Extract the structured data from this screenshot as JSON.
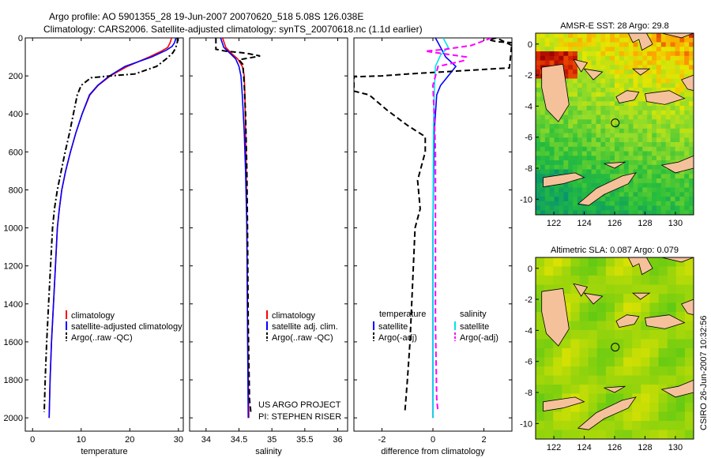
{
  "header": {
    "title_line1": "Argo profile: AO 5901355_28 19-Jun-2007 20070620_518 5.08S 126.038E",
    "title_line2": "Climatology: CARS2006. Satellite-adjusted climatology: synTS_20070618.nc (1.1d earlier)"
  },
  "credit": {
    "project": "US ARGO PROJECT",
    "pi": "PI: STEPHEN RISER",
    "stamp": "CSIRO 26-Jun-2007 10:32:56"
  },
  "colors": {
    "climatology": "#ff0000",
    "satellite": "#0000ff",
    "argo": "#000000",
    "sal_satellite": "#00e5e5",
    "sal_argo": "#ff00ff",
    "land": "#f5c19b"
  },
  "chart_data": [
    {
      "id": "temperature",
      "type": "line",
      "xlabel": "temperature",
      "ylabel": "",
      "xlim": [
        -1.5,
        31
      ],
      "ylim": [
        0,
        2070
      ],
      "y_reversed": true,
      "xticks": [
        0,
        10,
        20,
        30
      ],
      "yticks": [
        0,
        200,
        400,
        600,
        800,
        1000,
        1200,
        1400,
        1600,
        1800,
        2000
      ],
      "legend": {
        "placement": "lower-right",
        "labels": [
          "climatology",
          "satellite-adjusted climatology",
          "Argo(..raw -QC)"
        ]
      },
      "series": [
        {
          "name": "climatology",
          "color": "#ff0000",
          "dash": "solid",
          "points": [
            [
              28.6,
              0
            ],
            [
              28.3,
              25
            ],
            [
              27.8,
              50
            ],
            [
              26.5,
              70
            ],
            [
              24,
              100
            ],
            [
              19.5,
              150
            ],
            [
              16,
              200
            ],
            [
              13.5,
              250
            ],
            [
              11.8,
              300
            ],
            [
              10.2,
              400
            ],
            [
              8.9,
              500
            ],
            [
              7.8,
              600
            ],
            [
              6.8,
              700
            ],
            [
              6,
              800
            ],
            [
              5.5,
              900
            ],
            [
              5.1,
              1000
            ],
            [
              4.7,
              1200
            ],
            [
              4.3,
              1400
            ],
            [
              3.9,
              1600
            ],
            [
              3.6,
              1800
            ],
            [
              3.4,
              2000
            ]
          ]
        },
        {
          "name": "satellite-adjusted climatology",
          "color": "#0000ff",
          "dash": "solid",
          "points": [
            [
              29.5,
              0
            ],
            [
              29.2,
              25
            ],
            [
              28.7,
              45
            ],
            [
              27.5,
              65
            ],
            [
              24.5,
              100
            ],
            [
              19,
              150
            ],
            [
              15.8,
              200
            ],
            [
              13.4,
              250
            ],
            [
              11.7,
              300
            ],
            [
              10.2,
              400
            ],
            [
              8.9,
              500
            ],
            [
              7.8,
              600
            ],
            [
              6.8,
              700
            ],
            [
              6,
              800
            ],
            [
              5.5,
              900
            ],
            [
              5.1,
              1000
            ],
            [
              4.7,
              1200
            ],
            [
              4.3,
              1400
            ],
            [
              3.9,
              1600
            ],
            [
              3.6,
              1800
            ],
            [
              3.4,
              2000
            ]
          ]
        },
        {
          "name": "Argo(..raw -QC)",
          "color": "#000000",
          "dash": "dashdot",
          "points": [
            [
              29.8,
              0
            ],
            [
              29.8,
              20
            ],
            [
              29.6,
              40
            ],
            [
              29.3,
              60
            ],
            [
              28.8,
              80
            ],
            [
              27.5,
              110
            ],
            [
              25.5,
              150
            ],
            [
              21,
              190
            ],
            [
              16,
              200
            ],
            [
              12,
              210
            ],
            [
              10,
              250
            ],
            [
              9.2,
              300
            ],
            [
              8.4,
              400
            ],
            [
              7.6,
              500
            ],
            [
              6.7,
              600
            ],
            [
              5.9,
              700
            ],
            [
              5.1,
              800
            ],
            [
              4.5,
              900
            ],
            [
              4.1,
              1000
            ],
            [
              3.7,
              1200
            ],
            [
              3.3,
              1400
            ],
            [
              2.9,
              1600
            ],
            [
              2.6,
              1800
            ],
            [
              2.4,
              1970
            ]
          ]
        }
      ]
    },
    {
      "id": "salinity",
      "type": "line",
      "xlabel": "salinity",
      "xlim": [
        33.75,
        36.15
      ],
      "ylim": [
        0,
        2070
      ],
      "y_reversed": true,
      "xticks": [
        34,
        34.5,
        35,
        35.5,
        36
      ],
      "legend": {
        "placement": "lower-right",
        "labels": [
          "climatology",
          "satellite adj. clim.",
          "Argo(..raw -QC)"
        ]
      },
      "series": [
        {
          "name": "climatology",
          "color": "#ff0000",
          "dash": "solid",
          "points": [
            [
              34.25,
              0
            ],
            [
              34.3,
              50
            ],
            [
              34.38,
              80
            ],
            [
              34.48,
              110
            ],
            [
              34.55,
              150
            ],
            [
              34.58,
              200
            ],
            [
              34.59,
              300
            ],
            [
              34.6,
              500
            ],
            [
              34.61,
              700
            ],
            [
              34.62,
              1000
            ],
            [
              34.63,
              1500
            ],
            [
              34.65,
              2000
            ]
          ]
        },
        {
          "name": "satellite adj. clim.",
          "color": "#0000ff",
          "dash": "solid",
          "points": [
            [
              34.22,
              0
            ],
            [
              34.27,
              50
            ],
            [
              34.36,
              80
            ],
            [
              34.45,
              110
            ],
            [
              34.5,
              150
            ],
            [
              34.53,
              200
            ],
            [
              34.55,
              300
            ],
            [
              34.58,
              500
            ],
            [
              34.6,
              700
            ],
            [
              34.62,
              1000
            ],
            [
              34.63,
              1500
            ],
            [
              34.64,
              2000
            ]
          ]
        },
        {
          "name": "Argo(..raw -QC)",
          "color": "#000000",
          "dash": "dashed",
          "points": [
            [
              34.15,
              0
            ],
            [
              34.15,
              60
            ],
            [
              34.3,
              70
            ],
            [
              34.6,
              80
            ],
            [
              34.82,
              95
            ],
            [
              34.5,
              115
            ],
            [
              34.56,
              140
            ],
            [
              34.58,
              250
            ],
            [
              34.6,
              400
            ],
            [
              34.62,
              700
            ],
            [
              34.63,
              1000
            ],
            [
              34.64,
              1500
            ],
            [
              34.66,
              1900
            ],
            [
              34.68,
              1970
            ]
          ]
        }
      ]
    },
    {
      "id": "difference",
      "type": "line",
      "xlabel": "difference from climatology",
      "xlim": [
        -3.1,
        3.1
      ],
      "ylim": [
        0,
        2070
      ],
      "y_reversed": true,
      "xticks": [
        -2,
        0,
        2
      ],
      "legend": {
        "placement": "lower",
        "labels": [
          "temperature",
          "satellite",
          "Argo(-adj)",
          "salinity",
          "satellite",
          "Argo(-adj)"
        ]
      },
      "series": [
        {
          "name": "temperature satellite",
          "color": "#0000ff",
          "dash": "solid",
          "points": [
            [
              0.1,
              0
            ],
            [
              0.3,
              50
            ],
            [
              0.5,
              100
            ],
            [
              0.9,
              150
            ],
            [
              0.6,
              200
            ],
            [
              0.3,
              250
            ],
            [
              0.15,
              300
            ],
            [
              0.05,
              500
            ],
            [
              0,
              1000
            ],
            [
              0,
              2000
            ]
          ]
        },
        {
          "name": "temperature Argo(-adj)",
          "color": "#000000",
          "dash": "dashed",
          "points": [
            [
              3.1,
              40
            ],
            [
              2.5,
              0
            ],
            [
              2.2,
              10
            ],
            [
              2.5,
              20
            ],
            [
              3.1,
              25
            ],
            [
              3,
              158
            ],
            [
              1.5,
              170
            ],
            [
              -1,
              190
            ],
            [
              -2,
              200
            ],
            [
              -3.1,
              205
            ],
            [
              -3.1,
              280
            ],
            [
              -2.5,
              300
            ],
            [
              -1.8,
              380
            ],
            [
              -1,
              460
            ],
            [
              -0.3,
              520
            ],
            [
              -0.3,
              600
            ],
            [
              -0.6,
              750
            ],
            [
              -0.5,
              900
            ],
            [
              -0.7,
              1000
            ],
            [
              -0.8,
              1300
            ],
            [
              -0.9,
              1600
            ],
            [
              -1,
              1800
            ],
            [
              -1.1,
              1970
            ]
          ]
        },
        {
          "name": "salinity satellite",
          "color": "#00e5e5",
          "dash": "solid",
          "points": [
            [
              0.4,
              0
            ],
            [
              0.6,
              50
            ],
            [
              0.3,
              90
            ],
            [
              0.1,
              150
            ],
            [
              0.05,
              300
            ],
            [
              0.02,
              500
            ],
            [
              0,
              1000
            ],
            [
              0,
              2000
            ]
          ]
        },
        {
          "name": "salinity Argo(-adj)",
          "color": "#ff00ff",
          "dash": "dashed",
          "points": [
            [
              2.3,
              0
            ],
            [
              1.5,
              40
            ],
            [
              0.5,
              60
            ],
            [
              -0.3,
              70
            ],
            [
              0.5,
              85
            ],
            [
              1.3,
              100
            ],
            [
              1.2,
              120
            ],
            [
              0.2,
              150
            ],
            [
              0,
              250
            ],
            [
              0.05,
              400
            ],
            [
              0.1,
              600
            ],
            [
              0.1,
              1000
            ],
            [
              0.1,
              1500
            ],
            [
              0.15,
              1900
            ],
            [
              0.2,
              1970
            ]
          ]
        }
      ]
    },
    {
      "id": "sst-map",
      "type": "heatmap",
      "title": "AMSR-E SST: 28 Argo: 29.8",
      "xlim": [
        120.8,
        131.2
      ],
      "ylim": [
        -11,
        0.7
      ],
      "xticks": [
        122,
        124,
        126,
        128,
        130
      ],
      "yticks": [
        0,
        -2,
        -4,
        -6,
        -8,
        -10
      ],
      "float_marker": [
        126.038,
        -5.08
      ]
    },
    {
      "id": "sla-map",
      "type": "heatmap",
      "title": "Altimetric SLA: 0.087 Argo: 0.079",
      "xlim": [
        120.8,
        131.2
      ],
      "ylim": [
        -11,
        0.7
      ],
      "xticks": [
        122,
        124,
        126,
        128,
        130
      ],
      "yticks": [
        0,
        -2,
        -4,
        -6,
        -8,
        -10
      ],
      "float_marker": [
        126.038,
        -5.08
      ]
    }
  ]
}
